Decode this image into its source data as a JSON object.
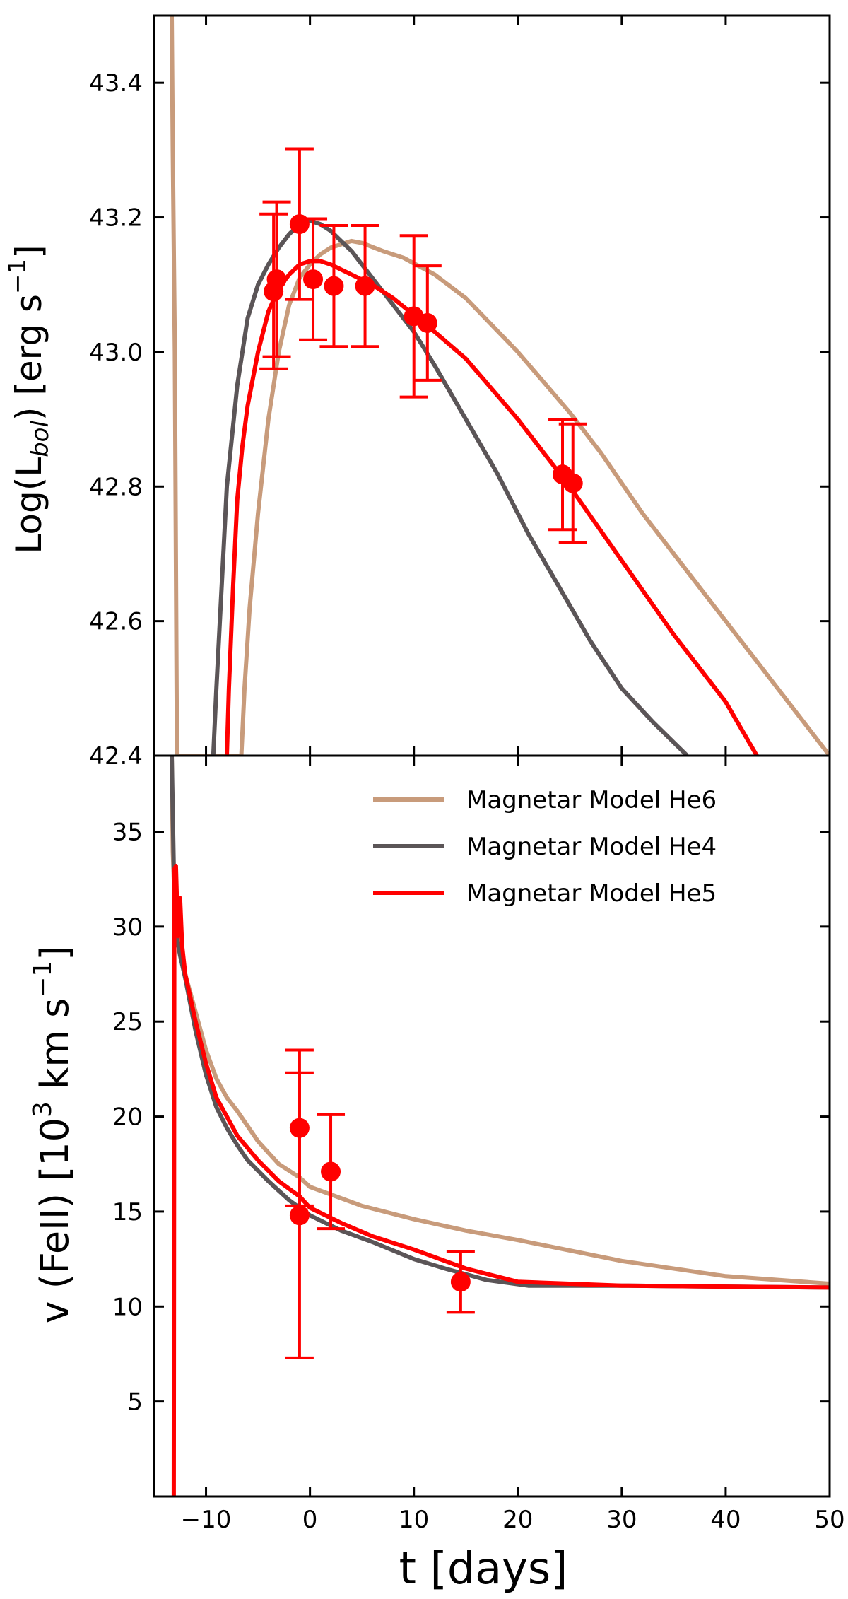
{
  "chart_data": [
    {
      "id": "top",
      "type": "line",
      "ylabel_prefix": "Log(L",
      "ylabel_sub": "bol",
      "ylabel_mid": ") [erg s",
      "ylabel_sup": "−1",
      "ylabel_suffix": "]",
      "xlim": [
        -15,
        50
      ],
      "ylim": [
        42.4,
        43.5
      ],
      "yticks": [
        42.4,
        42.6,
        42.8,
        43.0,
        43.2,
        43.4
      ],
      "ytick_labels": [
        "42.4",
        "42.6",
        "42.8",
        "43.0",
        "43.2",
        "43.4"
      ],
      "series": [
        {
          "key": "he6",
          "name": "Magnetar Model He6",
          "color": "#c89b7b",
          "x": [
            -13.3,
            -13.2,
            -13.0,
            -12.9,
            -12.8,
            -6.6,
            -6.3,
            -5.8,
            -5.0,
            -4.0,
            -3.0,
            -2.0,
            -1.0,
            0.0,
            1.0,
            2.0,
            3.0,
            4.0,
            5.0,
            7.0,
            9.0,
            12.0,
            15.0,
            20.0,
            25.0,
            28.0,
            32.0,
            36.0,
            40.0,
            45.0,
            50.0
          ],
          "y": [
            43.5,
            43.3,
            43.0,
            42.7,
            42.4,
            42.4,
            42.5,
            42.62,
            42.76,
            42.9,
            43.0,
            43.07,
            43.11,
            43.13,
            43.145,
            43.155,
            43.16,
            43.165,
            43.162,
            43.15,
            43.14,
            43.115,
            43.08,
            43.0,
            42.91,
            42.85,
            42.76,
            42.68,
            42.6,
            42.5,
            42.4
          ]
        },
        {
          "key": "he4",
          "name": "Magnetar Model He4",
          "color": "#5b5557",
          "x": [
            -9.3,
            -9.0,
            -8.5,
            -8.0,
            -7.0,
            -6.0,
            -5.0,
            -4.0,
            -3.0,
            -2.0,
            -1.0,
            0.0,
            1.0,
            2.0,
            4.0,
            6.0,
            8.0,
            10.0,
            12.0,
            15.0,
            18.0,
            21.0,
            24.0,
            27.0,
            30.0,
            33.0,
            36.3
          ],
          "y": [
            42.4,
            42.5,
            42.65,
            42.8,
            42.95,
            43.05,
            43.1,
            43.13,
            43.155,
            43.175,
            43.19,
            43.195,
            43.19,
            43.18,
            43.15,
            43.11,
            43.07,
            43.03,
            42.98,
            42.9,
            42.82,
            42.73,
            42.65,
            42.57,
            42.5,
            42.45,
            42.4
          ]
        },
        {
          "key": "he5",
          "name": "Magnetar Model He5",
          "color": "#ff0000",
          "x": [
            -8.0,
            -7.8,
            -7.4,
            -7.0,
            -6.5,
            -6.0,
            -5.0,
            -4.0,
            -3.0,
            -2.0,
            -1.0,
            0.0,
            1.0,
            2.0,
            4.0,
            6.0,
            8.0,
            10.0,
            12.0,
            15.0,
            20.0,
            25.0,
            30.0,
            35.0,
            40.0,
            43.0
          ],
          "y": [
            42.4,
            42.5,
            42.65,
            42.78,
            42.86,
            42.92,
            43.0,
            43.06,
            43.095,
            43.115,
            43.13,
            43.135,
            43.135,
            43.13,
            43.115,
            43.1,
            43.08,
            43.055,
            43.03,
            42.99,
            42.9,
            42.8,
            42.69,
            42.58,
            42.48,
            42.4
          ]
        }
      ],
      "points": {
        "color": "#ff0000",
        "x": [
          -3.5,
          -3.2,
          -1.0,
          0.3,
          2.3,
          5.3,
          10.0,
          11.3,
          24.3,
          25.3
        ],
        "y": [
          43.09,
          43.108,
          43.19,
          43.108,
          43.098,
          43.098,
          43.053,
          43.043,
          42.818,
          42.805
        ],
        "yerr": [
          0.115,
          0.115,
          0.112,
          0.09,
          0.09,
          0.09,
          0.12,
          0.085,
          0.082,
          0.088
        ]
      }
    },
    {
      "id": "bottom",
      "type": "line",
      "xlabel": "t [days]",
      "ylabel_prefix": "v (FeII)  [10",
      "ylabel_sup": "3",
      "ylabel_suffix": " km s",
      "ylabel_sup2": "−1",
      "ylabel_end": "]",
      "xlim": [
        -15,
        50
      ],
      "ylim": [
        0,
        39
      ],
      "xticks": [
        -10,
        0,
        10,
        20,
        30,
        40,
        50
      ],
      "xtick_labels": [
        "−10",
        "0",
        "10",
        "20",
        "30",
        "40",
        "50"
      ],
      "yticks": [
        5,
        10,
        15,
        20,
        25,
        30,
        35
      ],
      "ytick_labels": [
        "5",
        "10",
        "15",
        "20",
        "25",
        "30",
        "35"
      ],
      "legend_position": "top-right",
      "series": [
        {
          "key": "he6",
          "name": "Magnetar Model He6",
          "color": "#c89b7b",
          "x": [
            -13.3,
            -13.2,
            -13.0,
            -12.5,
            -12.0,
            -11.0,
            -10.0,
            -9.0,
            -8.0,
            -7.0,
            -5.0,
            -3.0,
            -1.0,
            0.0,
            2.0,
            5.0,
            10.0,
            15.0,
            20.0,
            30.0,
            40.0,
            50.0
          ],
          "y": [
            39,
            34,
            31,
            29,
            27.5,
            25.5,
            23.5,
            22,
            21,
            20.3,
            18.7,
            17.5,
            16.8,
            16.3,
            15.9,
            15.3,
            14.6,
            14.0,
            13.5,
            12.4,
            11.6,
            11.2
          ]
        },
        {
          "key": "he4",
          "name": "Magnetar Model He4",
          "color": "#5b5557",
          "x": [
            -13.3,
            -13.0,
            -12.5,
            -12.0,
            -11.0,
            -10.0,
            -9.0,
            -8.0,
            -7.0,
            -6.0,
            -4.0,
            -2.0,
            0.0,
            3.0,
            6.0,
            10.0,
            13.0,
            17.0,
            21.0,
            30.0,
            50.0
          ],
          "y": [
            39,
            30,
            28.5,
            27.3,
            24.5,
            22.2,
            20.5,
            19.4,
            18.5,
            17.7,
            16.6,
            15.6,
            14.8,
            14.0,
            13.4,
            12.5,
            12.0,
            11.4,
            11.1,
            11.1,
            11.0
          ]
        },
        {
          "key": "he5",
          "name": "Magnetar Model He5",
          "color": "#ff0000",
          "x": [
            -13.1,
            -13.05,
            -12.9,
            -12.7,
            -12.5,
            -12.3,
            -12.0,
            -11.0,
            -10.0,
            -9.0,
            -8.0,
            -7.0,
            -5.0,
            -3.0,
            -1.0,
            0.0,
            3.0,
            6.0,
            10.0,
            15.0,
            20.0,
            30.0,
            50.0
          ],
          "y": [
            0,
            33,
            33.2,
            29.5,
            31.5,
            29.0,
            27.5,
            25.0,
            22.8,
            21.0,
            20.0,
            19.0,
            17.7,
            16.6,
            15.8,
            15.2,
            14.4,
            13.7,
            13.0,
            12.0,
            11.3,
            11.1,
            11.0
          ]
        }
      ],
      "points": {
        "color": "#ff0000",
        "x": [
          -1.0,
          -1.0,
          2.0,
          14.5
        ],
        "y": [
          19.4,
          14.8,
          17.1,
          11.3
        ],
        "yerr": [
          4.1,
          7.5,
          3.0,
          1.6
        ]
      }
    }
  ]
}
